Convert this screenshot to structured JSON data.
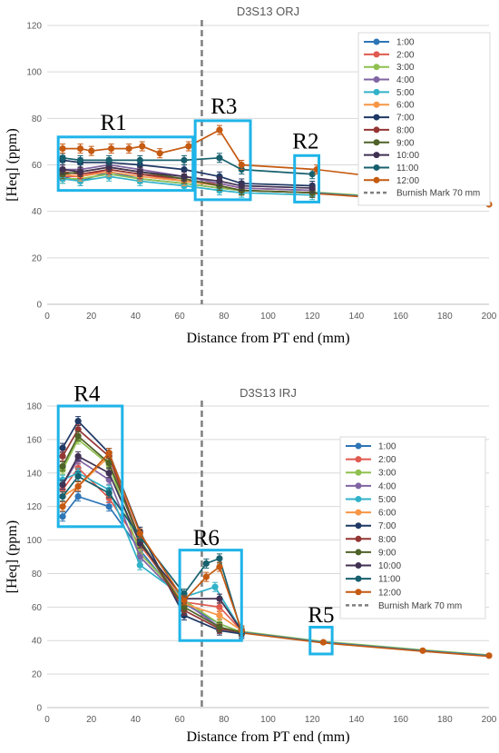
{
  "chart_data": [
    {
      "type": "line",
      "title": "D3S13 ORJ",
      "xlabel": "Distance from PT end (mm)",
      "ylabel": "[Heq] (ppm)",
      "xlim": [
        0,
        200
      ],
      "ylim": [
        0,
        120
      ],
      "xticks": [
        0,
        20,
        40,
        60,
        80,
        100,
        120,
        140,
        160,
        180,
        200
      ],
      "yticks": [
        0,
        20,
        40,
        60,
        80,
        100,
        120
      ],
      "grid": "horizontal",
      "legend_position": "top-right",
      "reference_line": {
        "name": "Burnish Mark 70 mm",
        "x": 70,
        "color": "#7f7f7f"
      },
      "series": [
        {
          "name": "1:00",
          "color": "#2e75b6",
          "x": [
            7,
            15,
            28,
            42,
            62,
            78,
            88,
            120
          ],
          "y": [
            55,
            53,
            57,
            54,
            52,
            50,
            49,
            48
          ]
        },
        {
          "name": "2:00",
          "color": "#e05a4f",
          "x": [
            7,
            15,
            28,
            42,
            62,
            78,
            88,
            120
          ],
          "y": [
            55,
            55,
            58,
            56,
            53,
            52,
            50,
            49
          ]
        },
        {
          "name": "3:00",
          "color": "#8fc04f",
          "x": [
            7,
            15,
            28,
            42,
            62,
            78,
            88,
            120
          ],
          "y": [
            54,
            54,
            56,
            54,
            52,
            50,
            49,
            48
          ]
        },
        {
          "name": "4:00",
          "color": "#8064a2",
          "x": [
            7,
            15,
            28,
            42,
            62,
            78,
            88,
            120
          ],
          "y": [
            58,
            58,
            60,
            58,
            55,
            52,
            50,
            49
          ]
        },
        {
          "name": "5:00",
          "color": "#31b2c8",
          "x": [
            7,
            15,
            28,
            42,
            62,
            78,
            88,
            120
          ],
          "y": [
            54,
            53,
            55,
            53,
            51,
            49,
            48,
            47
          ]
        },
        {
          "name": "6:00",
          "color": "#f79646",
          "x": [
            7,
            15,
            28,
            42,
            62,
            78,
            88,
            120
          ],
          "y": [
            56,
            55,
            57,
            55,
            53,
            51,
            49,
            48
          ]
        },
        {
          "name": "7:00",
          "color": "#1f3864",
          "x": [
            7,
            15,
            28,
            42,
            62,
            78,
            88,
            120
          ],
          "y": [
            62,
            61,
            61,
            60,
            58,
            55,
            52,
            51
          ]
        },
        {
          "name": "8:00",
          "color": "#943634",
          "x": [
            7,
            15,
            28,
            42,
            62,
            78,
            88,
            120
          ],
          "y": [
            57,
            56,
            58,
            56,
            54,
            51,
            49,
            48
          ]
        },
        {
          "name": "9:00",
          "color": "#4f6228",
          "x": [
            7,
            15,
            28,
            42,
            62,
            78,
            88,
            120
          ],
          "y": [
            56,
            57,
            59,
            57,
            54,
            51,
            49,
            48
          ]
        },
        {
          "name": "10:00",
          "color": "#403152",
          "x": [
            7,
            15,
            28,
            42,
            62,
            78,
            88,
            120
          ],
          "y": [
            58,
            57,
            59,
            57,
            55,
            53,
            51,
            50
          ]
        },
        {
          "name": "11:00",
          "color": "#17606e",
          "x": [
            7,
            15,
            28,
            42,
            62,
            78,
            88,
            120
          ],
          "y": [
            63,
            62,
            62,
            62,
            62,
            63,
            58,
            56
          ]
        },
        {
          "name": "12:00",
          "color": "#c55a11",
          "x": [
            7,
            15,
            20,
            29,
            37,
            43,
            51,
            64,
            78,
            88,
            122
          ],
          "y": [
            67,
            67,
            66,
            67,
            67,
            68,
            65,
            68,
            75,
            60,
            58
          ]
        }
      ],
      "common_tail": {
        "x": [
          120,
          200
        ],
        "y": [
          48,
          43
        ]
      },
      "tail_series": {
        "name": "12:00",
        "x": [
          122,
          200
        ],
        "y": [
          58,
          49
        ]
      },
      "regions": [
        {
          "label": "R1",
          "x": [
            5,
            66
          ],
          "y": [
            49,
            72
          ],
          "label_at": [
            30,
            75
          ]
        },
        {
          "label": "R3",
          "x": [
            67,
            92
          ],
          "y": [
            45,
            79
          ],
          "label_at": [
            80,
            82
          ]
        },
        {
          "label": "R2",
          "x": [
            112,
            123
          ],
          "y": [
            44,
            64
          ],
          "label_at": [
            117,
            67
          ]
        }
      ]
    },
    {
      "type": "line",
      "title": "D3S13 IRJ",
      "xlabel": "Distance from PT end (mm)",
      "ylabel": "[Heq] (ppm)",
      "xlim": [
        0,
        200
      ],
      "ylim": [
        0,
        180
      ],
      "xticks": [
        0,
        20,
        40,
        60,
        80,
        100,
        120,
        140,
        160,
        180,
        200
      ],
      "yticks": [
        0,
        20,
        40,
        60,
        80,
        100,
        120,
        140,
        160,
        180
      ],
      "grid": "horizontal",
      "legend_position": "top-right",
      "reference_line": {
        "name": "Burnish Mark 70 mm",
        "x": 70,
        "color": "#7f7f7f"
      },
      "series": [
        {
          "name": "1:00",
          "color": "#2e75b6",
          "x": [
            7,
            14,
            28,
            42,
            62,
            78,
            88
          ],
          "y": [
            114,
            126,
            120,
            94,
            62,
            50,
            45
          ]
        },
        {
          "name": "2:00",
          "color": "#e05a4f",
          "x": [
            7,
            14,
            28,
            42,
            62,
            78,
            88
          ],
          "y": [
            130,
            143,
            125,
            97,
            63,
            60,
            46
          ]
        },
        {
          "name": "3:00",
          "color": "#8fc04f",
          "x": [
            7,
            14,
            28,
            42,
            62,
            78,
            88
          ],
          "y": [
            142,
            160,
            145,
            92,
            64,
            50,
            45
          ]
        },
        {
          "name": "4:00",
          "color": "#8064a2",
          "x": [
            7,
            14,
            28,
            42,
            62,
            78,
            88
          ],
          "y": [
            133,
            148,
            136,
            90,
            63,
            48,
            44
          ]
        },
        {
          "name": "5:00",
          "color": "#31b2c8",
          "x": [
            7,
            14,
            28,
            42,
            62,
            76,
            88
          ],
          "y": [
            136,
            140,
            130,
            85,
            66,
            72,
            46
          ]
        },
        {
          "name": "6:00",
          "color": "#f79646",
          "x": [
            7,
            14,
            28,
            42,
            62,
            78,
            88
          ],
          "y": [
            126,
            132,
            150,
            98,
            62,
            55,
            46
          ]
        },
        {
          "name": "7:00",
          "color": "#1f3864",
          "x": [
            7,
            14,
            28,
            42,
            62,
            78,
            88
          ],
          "y": [
            155,
            171,
            152,
            105,
            55,
            46,
            44
          ]
        },
        {
          "name": "8:00",
          "color": "#943634",
          "x": [
            7,
            14,
            28,
            42,
            62,
            78,
            88
          ],
          "y": [
            150,
            166,
            150,
            100,
            58,
            47,
            45
          ]
        },
        {
          "name": "9:00",
          "color": "#4f6228",
          "x": [
            7,
            14,
            28,
            42,
            62,
            78,
            88
          ],
          "y": [
            144,
            162,
            146,
            100,
            60,
            48,
            45
          ]
        },
        {
          "name": "10:00",
          "color": "#403152",
          "x": [
            7,
            14,
            28,
            42,
            62,
            78,
            88
          ],
          "y": [
            133,
            150,
            140,
            98,
            65,
            65,
            46
          ]
        },
        {
          "name": "11:00",
          "color": "#17606e",
          "x": [
            7,
            14,
            28,
            42,
            62,
            72,
            78,
            88
          ],
          "y": [
            126,
            138,
            128,
            102,
            68,
            86,
            89,
            45
          ]
        },
        {
          "name": "12:00",
          "color": "#c55a11",
          "x": [
            7,
            14,
            28,
            42,
            62,
            72,
            78,
            88
          ],
          "y": [
            120,
            132,
            152,
            104,
            64,
            78,
            84,
            46
          ]
        }
      ],
      "common_tail": {
        "x": [
          88,
          125,
          170,
          200
        ],
        "y": [
          45,
          39,
          34,
          31
        ]
      },
      "regions": [
        {
          "label": "R4",
          "x": [
            5,
            34
          ],
          "y": [
            108,
            180
          ],
          "label_at": [
            18,
            183
          ]
        },
        {
          "label": "R6",
          "x": [
            60,
            88
          ],
          "y": [
            40,
            94
          ],
          "label_at": [
            72,
            97
          ]
        },
        {
          "label": "R5",
          "x": [
            119,
            129
          ],
          "y": [
            32,
            48
          ],
          "label_at": [
            124,
            51
          ]
        }
      ]
    }
  ]
}
